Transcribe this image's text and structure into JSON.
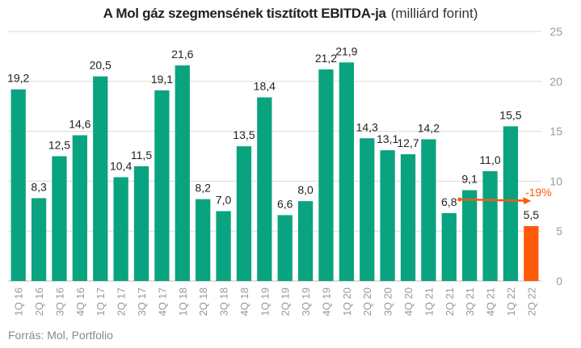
{
  "chart_data": {
    "type": "bar",
    "title": "A Mol gáz szegmensének tisztított EBITDA-ja",
    "unit_label": "(milliárd forint)",
    "categories": [
      "1Q 16",
      "2Q 16",
      "3Q 16",
      "4Q 16",
      "1Q 17",
      "2Q 17",
      "3Q 17",
      "4Q 17",
      "1Q 18",
      "2Q 18",
      "3Q 18",
      "4Q 18",
      "1Q 19",
      "2Q 19",
      "3Q 19",
      "4Q 19",
      "1Q 20",
      "2Q 20",
      "3Q 20",
      "4Q 20",
      "1Q 21",
      "2Q 21",
      "3Q 21",
      "4Q 21",
      "1Q 22",
      "2Q 22"
    ],
    "values": [
      19.2,
      8.3,
      12.5,
      14.6,
      20.5,
      10.4,
      11.5,
      19.1,
      21.6,
      8.2,
      7.0,
      13.5,
      18.4,
      6.6,
      8.0,
      21.2,
      21.9,
      14.3,
      13.1,
      12.7,
      14.2,
      6.8,
      9.1,
      11.0,
      15.5,
      5.5
    ],
    "value_labels": [
      "19,2",
      "8,3",
      "12,5",
      "14,6",
      "20,5",
      "10,4",
      "11,5",
      "19,1",
      "21,6",
      "8,2",
      "7,0",
      "13,5",
      "18,4",
      "6,6",
      "8,0",
      "21,2",
      "21,9",
      "14,3",
      "13,1",
      "12,7",
      "14,2",
      "6,8",
      "9,1",
      "11,0",
      "15,5",
      "5,5"
    ],
    "ylim": [
      0,
      25
    ],
    "yticks": [
      0,
      5,
      10,
      15,
      20,
      25
    ],
    "y_axis_position": "right",
    "grid": true,
    "colors": {
      "bar": "#0aa37f",
      "highlight": "#ff5a0a",
      "grid": "#d9d9d9",
      "axis_text": "#999999"
    },
    "highlight_index": 25,
    "annotation": {
      "text": "-19%",
      "from_index": 21,
      "to_index": 25,
      "color": "#ff5a0a"
    }
  },
  "source": "Forrás: Mol, Portfolio"
}
